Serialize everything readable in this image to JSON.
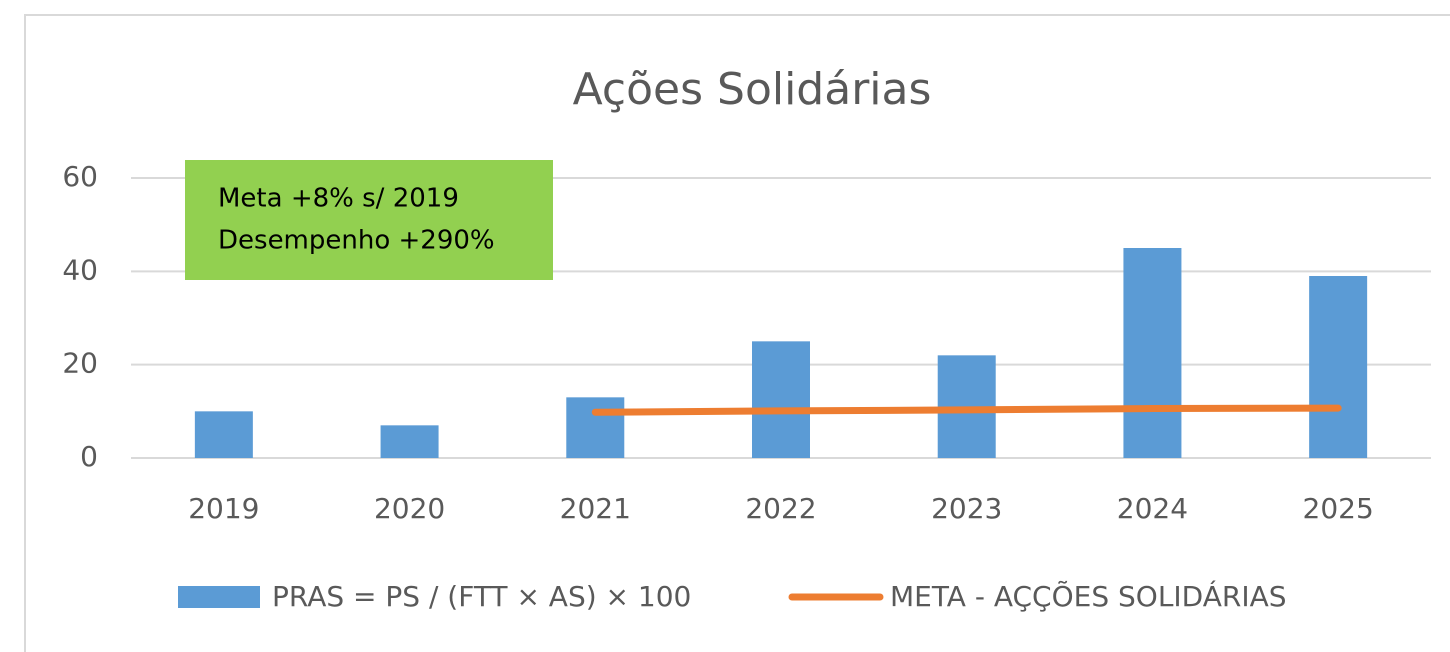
{
  "chart_data": {
    "type": "combo",
    "title": "Ações Solidárias",
    "categories": [
      "2019",
      "2020",
      "2021",
      "2022",
      "2023",
      "2024",
      "2025"
    ],
    "series": [
      {
        "name": "PRAS = PS / (FTT × AS) × 100",
        "type": "bar",
        "color": "#5b9bd5",
        "values": [
          10,
          7,
          13,
          25,
          22,
          45,
          39
        ]
      },
      {
        "name": "META - AÇÇÕES SOLIDÁRIAS",
        "type": "line",
        "color": "#ed7d31",
        "values": [
          null,
          null,
          9.8,
          10.1,
          10.3,
          10.6,
          10.7
        ]
      }
    ],
    "annotations": [
      "Meta +8% s/ 2019",
      "Desempenho +290%"
    ],
    "annotation_color": "#92d050",
    "ylim": [
      0,
      60
    ],
    "yticks": [
      0,
      20,
      40,
      60
    ],
    "grid": true,
    "legend": "bottom"
  }
}
